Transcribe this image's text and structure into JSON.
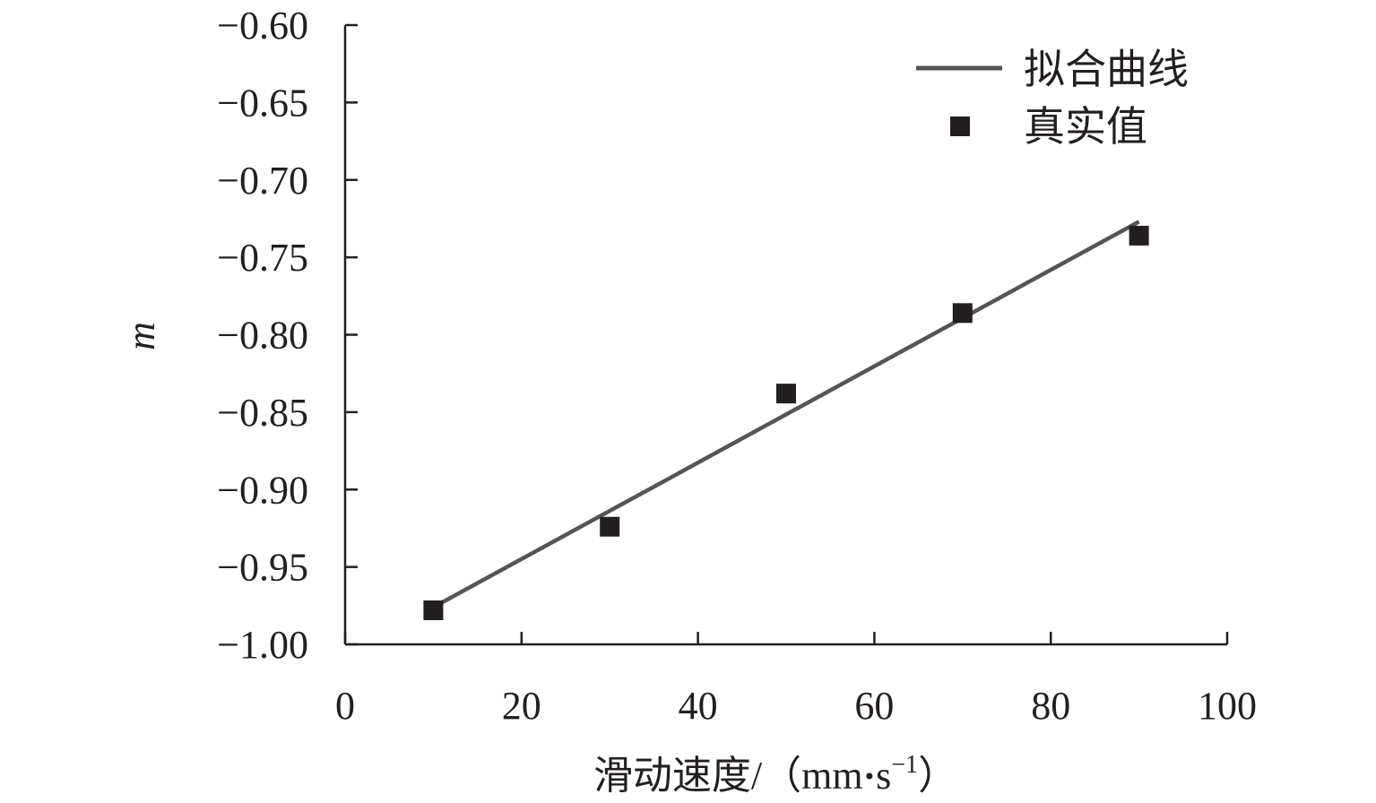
{
  "chart_data": {
    "type": "scatter",
    "xlabel": "滑动速度/（mm",
    "xlabel_unit_sep": "•",
    "xlabel_unit": "s",
    "xlabel_unit_exp": "−1",
    "xlabel_close": "）",
    "ylabel": "m",
    "xlim": [
      0,
      100
    ],
    "ylim": [
      -1.0,
      -0.6
    ],
    "x_ticks": [
      0,
      20,
      40,
      60,
      80,
      100
    ],
    "x_tick_labels": [
      "0",
      "20",
      "40",
      "60",
      "80",
      "100"
    ],
    "y_ticks": [
      -0.6,
      -0.65,
      -0.7,
      -0.75,
      -0.8,
      -0.85,
      -0.9,
      -0.95,
      -1.0
    ],
    "y_tick_labels": [
      "−0.60",
      "−0.65",
      "−0.70",
      "−0.75",
      "−0.80",
      "−0.85",
      "−0.90",
      "−0.95",
      "−1.00"
    ],
    "grid": false,
    "legend_position": "top-right",
    "series": [
      {
        "name": "拟合曲线",
        "kind": "line",
        "color": "#555555",
        "x": [
          10,
          90
        ],
        "y": [
          -0.976,
          -0.727
        ]
      },
      {
        "name": "真实值",
        "kind": "scatter",
        "marker": "square",
        "color": "#231f20",
        "x": [
          10,
          30,
          50,
          70,
          90
        ],
        "y": [
          -0.978,
          -0.924,
          -0.838,
          -0.786,
          -0.736
        ]
      }
    ]
  }
}
